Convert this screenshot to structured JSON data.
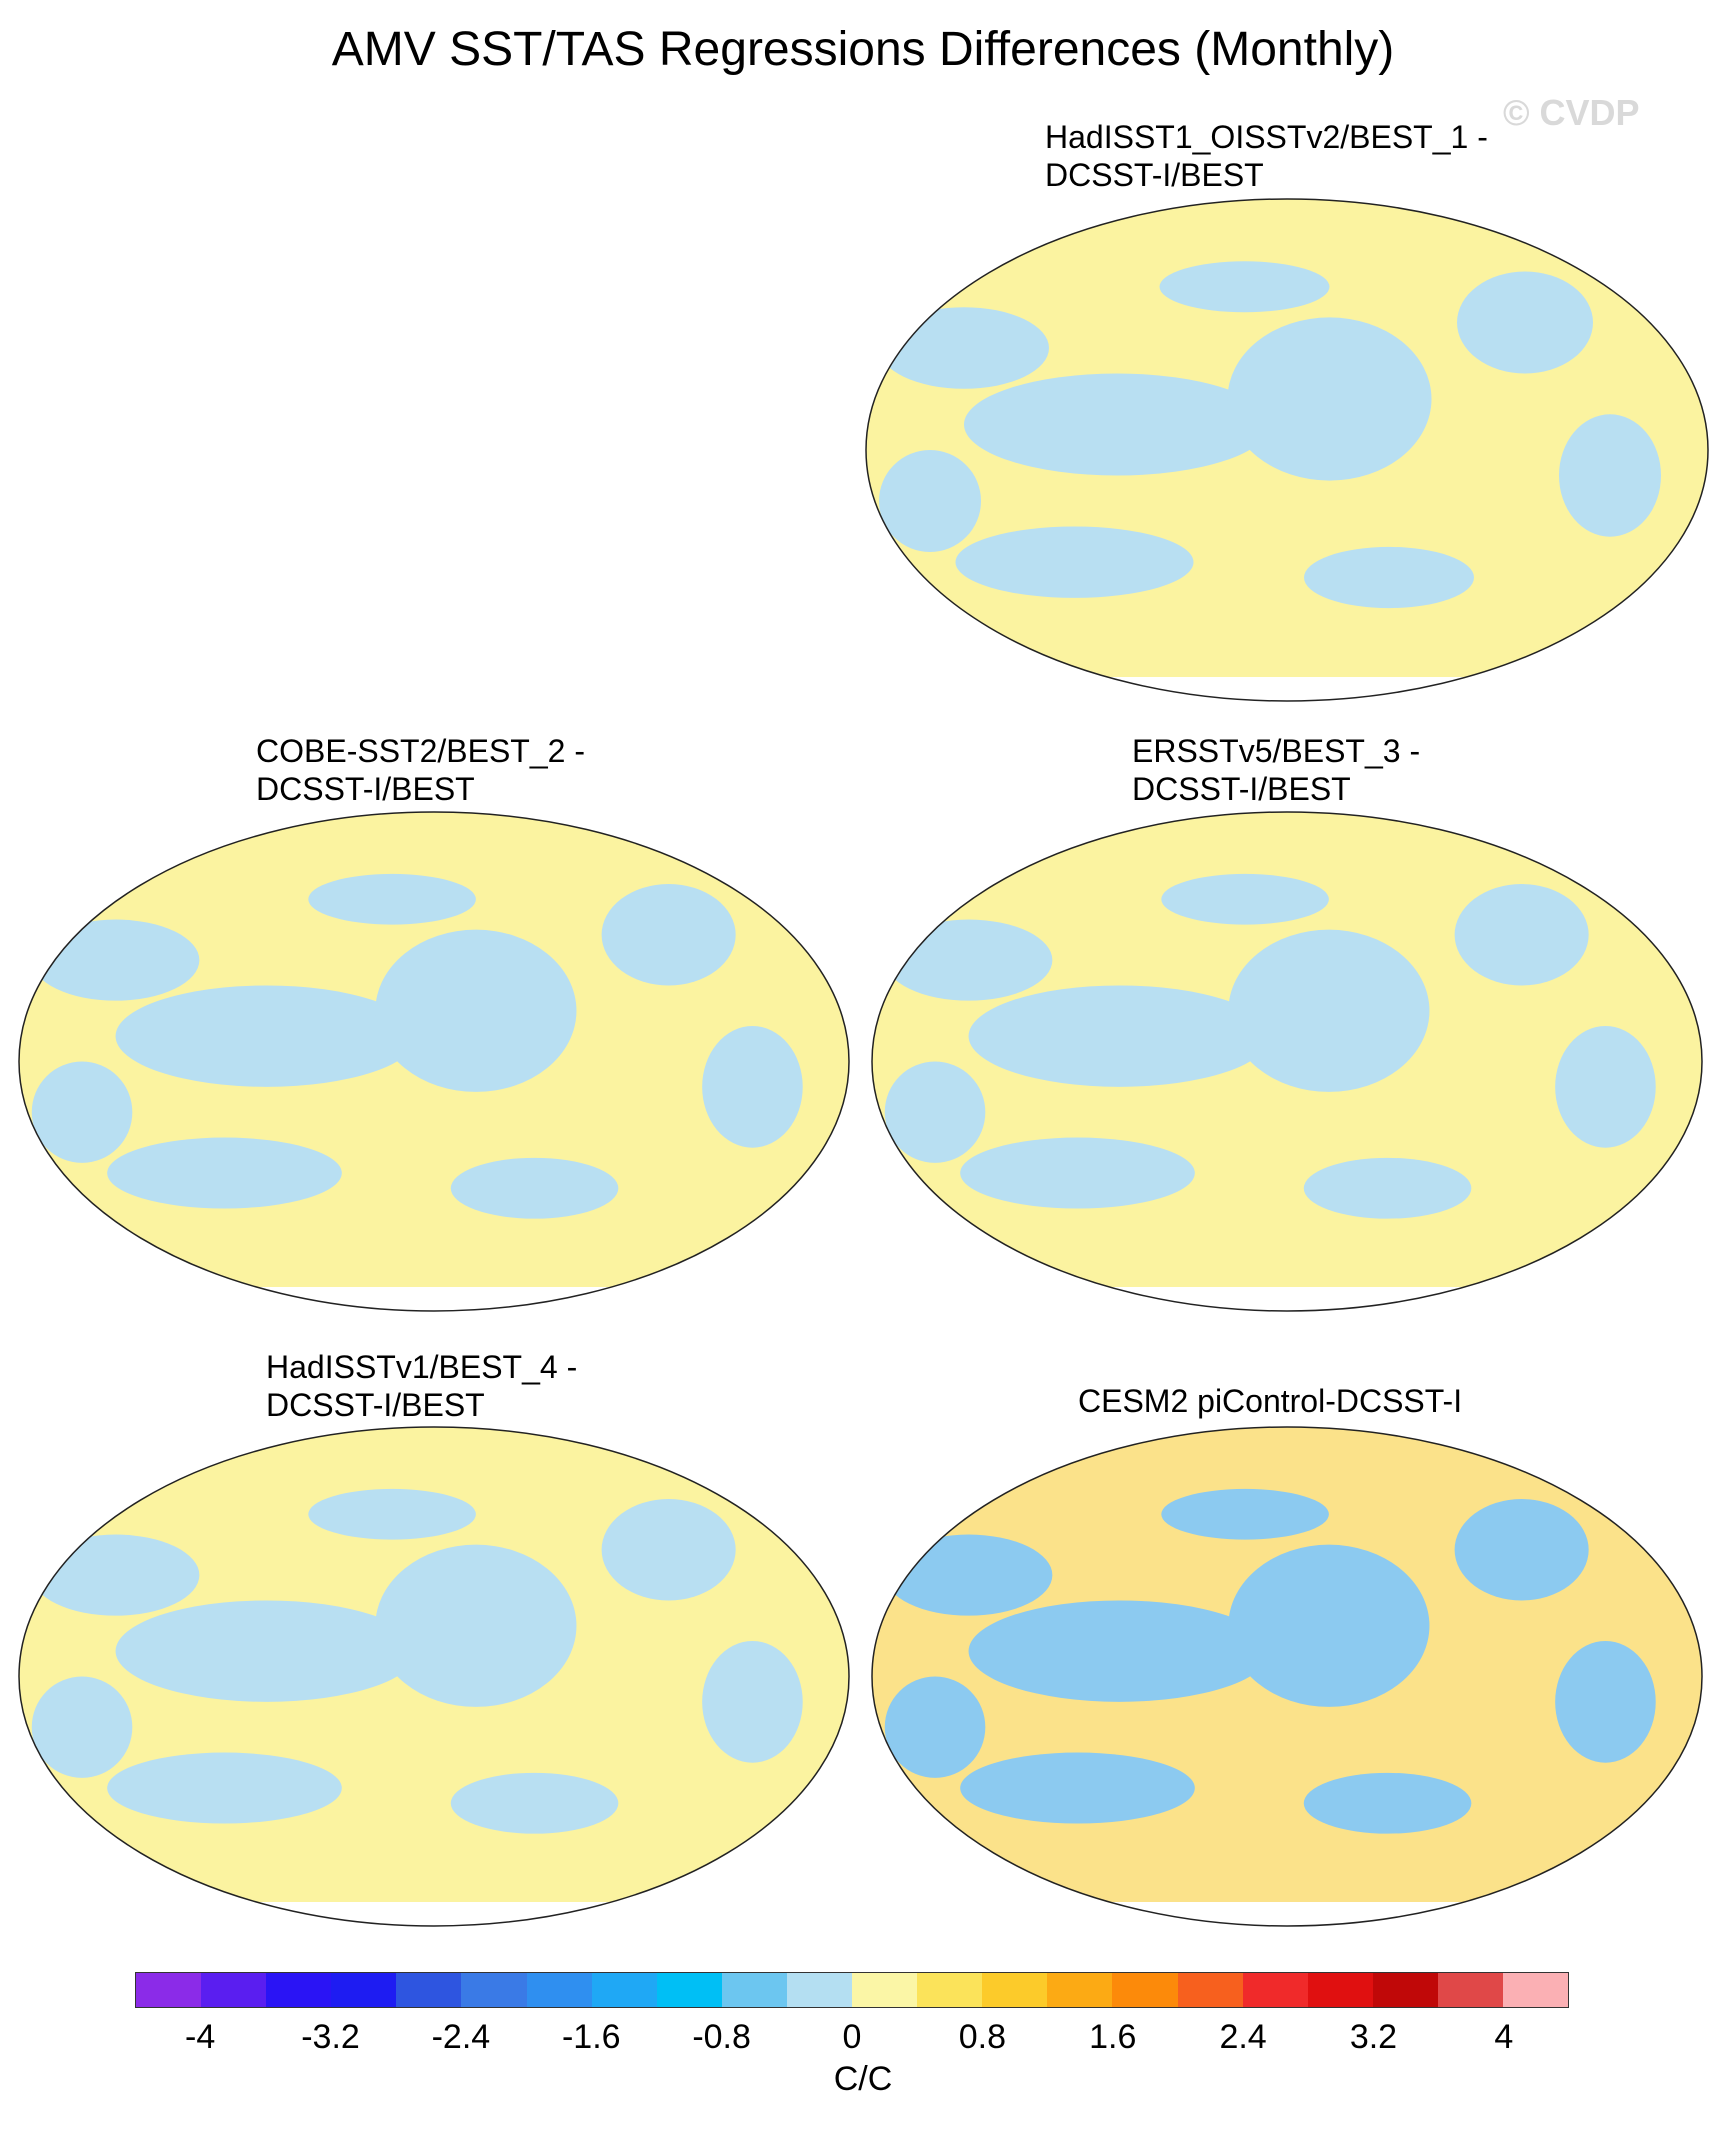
{
  "title": "AMV SST/TAS Regressions Differences (Monthly)",
  "watermark": "© CVDP",
  "panels": [
    {
      "id": "p1",
      "title_line1": "HadISST1_OISSTv2/BEST_1 -",
      "title_line2": "DCSST-I/BEST",
      "fill": "#fbf3a0",
      "accent": "#b8dff2"
    },
    {
      "id": "p2",
      "title_line1": "COBE-SST2/BEST_2 -",
      "title_line2": "DCSST-I/BEST",
      "fill": "#fbf3a0",
      "accent": "#b8dff2"
    },
    {
      "id": "p3",
      "title_line1": "ERSSTv5/BEST_3 -",
      "title_line2": "DCSST-I/BEST",
      "fill": "#fbf3a0",
      "accent": "#b8dff2"
    },
    {
      "id": "p4",
      "title_line1": "HadISSTv1/BEST_4 -",
      "title_line2": "DCSST-I/BEST",
      "fill": "#fbf3a0",
      "accent": "#b8dff2"
    },
    {
      "id": "p5",
      "title_line1": "CESM2 piControl-DCSST-I",
      "title_line2": "",
      "fill": "#fbe28a",
      "accent": "#8ccaf0"
    }
  ],
  "colorbar": {
    "colors": [
      "#8b2be8",
      "#5a1ef0",
      "#2a14f5",
      "#1e1cf2",
      "#2e55e0",
      "#3a7ae6",
      "#2f8ff0",
      "#1fa8f5",
      "#00bff5",
      "#6cc6f0",
      "#b4dff2",
      "#fbf6a6",
      "#fbe35a",
      "#fccb2a",
      "#fcaa14",
      "#fc8a0a",
      "#f7601e",
      "#f02a2a",
      "#e01010",
      "#c00808",
      "#e04848",
      "#fbb0b4"
    ],
    "labels": [
      "-4",
      "-3.2",
      "-2.4",
      "-1.6",
      "-0.8",
      "0",
      "0.8",
      "1.6",
      "2.4",
      "3.2",
      "4"
    ],
    "unit": "C/C"
  }
}
